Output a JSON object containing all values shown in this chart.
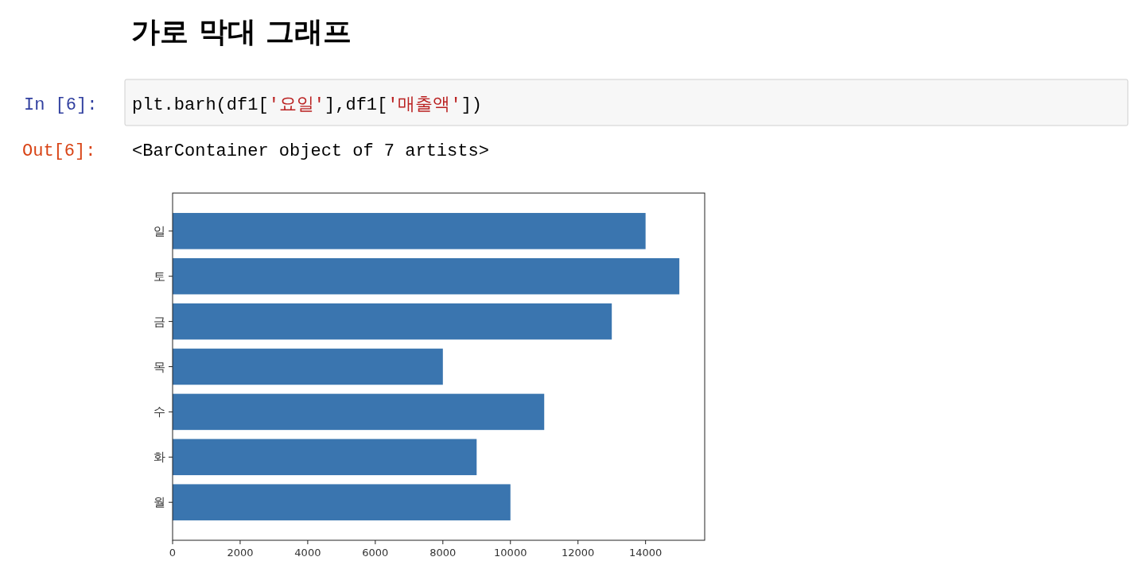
{
  "chart_data": {
    "type": "bar",
    "orientation": "horizontal",
    "title": "가로 막대 그래프",
    "categories": [
      "일",
      "토",
      "금",
      "목",
      "수",
      "화",
      "월"
    ],
    "values": [
      14000,
      15000,
      13000,
      8000,
      11000,
      9000,
      10000
    ],
    "color": "#3a75af",
    "xlim": [
      0,
      15750
    ],
    "xticks": [
      0,
      2000,
      4000,
      6000,
      8000,
      10000,
      12000,
      14000
    ],
    "annotations": [
      "In [6]:",
      "plt.barh(df1['요일'],df1['매출액'])",
      "Out[6]:",
      "<BarContainer object of 7 artists>"
    ]
  }
}
